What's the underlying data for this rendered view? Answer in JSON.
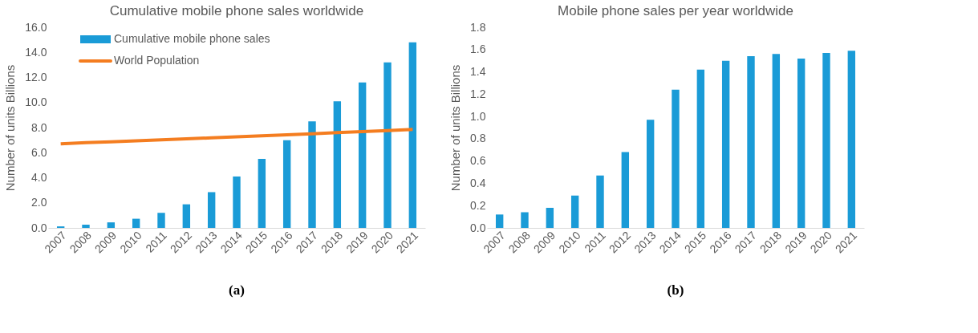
{
  "chart_data": [
    {
      "type": "bar",
      "title": "Cumulative mobile phone sales worldwide",
      "ylabel": "Number of units   Billions",
      "categories": [
        "2007",
        "2008",
        "2009",
        "2010",
        "2011",
        "2012",
        "2013",
        "2014",
        "2015",
        "2016",
        "2017",
        "2018",
        "2019",
        "2020",
        "2021"
      ],
      "series": [
        {
          "name": "Cumulative mobile phone sales",
          "color": "#1a9bd7",
          "values": [
            0.12,
            0.26,
            0.44,
            0.73,
            1.2,
            1.88,
            2.85,
            4.1,
            5.5,
            7.0,
            8.5,
            10.1,
            11.6,
            13.2,
            14.8
          ]
        },
        {
          "name": "World Population",
          "type": "line",
          "color": "#f47d20",
          "values": [
            6.7,
            6.8,
            6.87,
            6.95,
            7.02,
            7.1,
            7.18,
            7.26,
            7.34,
            7.42,
            7.5,
            7.6,
            7.68,
            7.76,
            7.85
          ]
        }
      ],
      "ylim": [
        0,
        16
      ],
      "yticks": [
        {
          "value": 0,
          "label": "0.0"
        },
        {
          "value": 2,
          "label": "2.0"
        },
        {
          "value": 4,
          "label": "4.0"
        },
        {
          "value": 6,
          "label": "6.0"
        },
        {
          "value": 8,
          "label": "8.0"
        },
        {
          "value": 10,
          "label": "10.0"
        },
        {
          "value": 12,
          "label": "12.0"
        },
        {
          "value": 14,
          "label": "14.0"
        },
        {
          "value": 16,
          "label": "16.0"
        }
      ],
      "grid": false,
      "legend": "top left",
      "marker": "none",
      "line_style": "solid",
      "annotations": [
        "(a)"
      ]
    },
    {
      "type": "bar",
      "title": "Mobile phone sales per year worldwide",
      "ylabel": "Number of units Billions",
      "categories": [
        "2007",
        "2008",
        "2009",
        "2010",
        "2011",
        "2012",
        "2013",
        "2014",
        "2015",
        "2016",
        "2017",
        "2018",
        "2019",
        "2020",
        "2021"
      ],
      "series": [
        {
          "color": "#1a9bd7",
          "values": [
            0.12,
            0.14,
            0.18,
            0.29,
            0.47,
            0.68,
            0.97,
            1.24,
            1.42,
            1.5,
            1.54,
            1.56,
            1.52,
            1.57,
            1.59
          ]
        }
      ],
      "ylim": [
        0,
        1.8
      ],
      "yticks": [
        {
          "value": 0,
          "label": "0.0"
        },
        {
          "value": 0.2,
          "label": "0.2"
        },
        {
          "value": 0.4,
          "label": "0.4"
        },
        {
          "value": 0.6,
          "label": "0.6"
        },
        {
          "value": 0.8,
          "label": "0.8"
        },
        {
          "value": 1.0,
          "label": "1.0"
        },
        {
          "value": 1.2,
          "label": "1.2"
        },
        {
          "value": 1.4,
          "label": "1.4"
        },
        {
          "value": 1.6,
          "label": "1.6"
        },
        {
          "value": 1.8,
          "label": "1.8"
        }
      ],
      "grid": false,
      "annotations": [
        "(b)"
      ]
    }
  ]
}
